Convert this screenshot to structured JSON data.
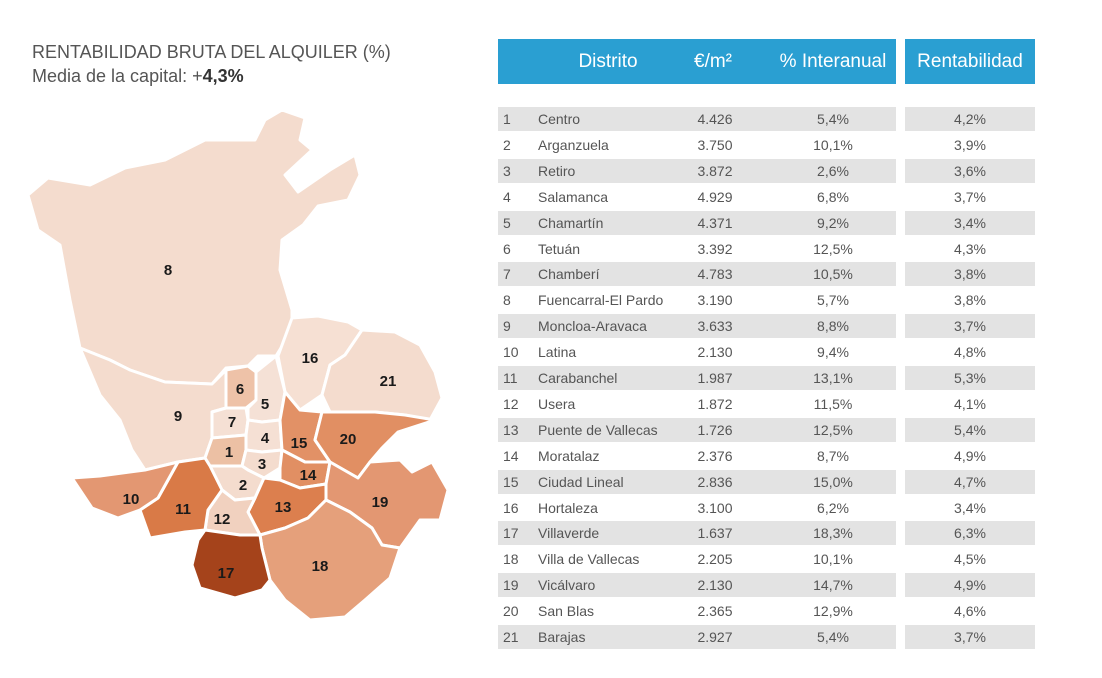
{
  "title": {
    "line1": "RENTABILIDAD BRUTA DEL ALQUILER (%)",
    "line2_prefix": "Media de la capital: +",
    "line2_value": "4,3%"
  },
  "table": {
    "headers": {
      "district": "Distrito",
      "price": "€/m²",
      "yoy": "% Interanual",
      "yield": "Rentabilidad"
    },
    "rows": [
      {
        "num": "1",
        "name": "Centro",
        "price": "4.426",
        "yoy": "5,4%",
        "yield": "4,2%"
      },
      {
        "num": "2",
        "name": "Arganzuela",
        "price": "3.750",
        "yoy": "10,1%",
        "yield": "3,9%"
      },
      {
        "num": "3",
        "name": "Retiro",
        "price": "3.872",
        "yoy": "2,6%",
        "yield": "3,6%"
      },
      {
        "num": "4",
        "name": "Salamanca",
        "price": "4.929",
        "yoy": "6,8%",
        "yield": "3,7%"
      },
      {
        "num": "5",
        "name": "Chamartín",
        "price": "4.371",
        "yoy": "9,2%",
        "yield": "3,4%"
      },
      {
        "num": "6",
        "name": "Tetuán",
        "price": "3.392",
        "yoy": "12,5%",
        "yield": "4,3%"
      },
      {
        "num": "7",
        "name": "Chamberí",
        "price": "4.783",
        "yoy": "10,5%",
        "yield": "3,8%"
      },
      {
        "num": "8",
        "name": "Fuencarral-El Pardo",
        "price": "3.190",
        "yoy": "5,7%",
        "yield": "3,8%"
      },
      {
        "num": "9",
        "name": "Moncloa-Aravaca",
        "price": "3.633",
        "yoy": "8,8%",
        "yield": "3,7%"
      },
      {
        "num": "10",
        "name": "Latina",
        "price": "2.130",
        "yoy": "9,4%",
        "yield": "4,8%"
      },
      {
        "num": "11",
        "name": "Carabanchel",
        "price": "1.987",
        "yoy": "13,1%",
        "yield": "5,3%"
      },
      {
        "num": "12",
        "name": "Usera",
        "price": "1.872",
        "yoy": "11,5%",
        "yield": "4,1%"
      },
      {
        "num": "13",
        "name": "Puente de Vallecas",
        "price": "1.726",
        "yoy": "12,5%",
        "yield": "5,4%"
      },
      {
        "num": "14",
        "name": "Moratalaz",
        "price": "2.376",
        "yoy": "8,7%",
        "yield": "4,9%"
      },
      {
        "num": "15",
        "name": "Ciudad Lineal",
        "price": "2.836",
        "yoy": "15,0%",
        "yield": "4,7%"
      },
      {
        "num": "16",
        "name": "Hortaleza",
        "price": "3.100",
        "yoy": "6,2%",
        "yield": "3,4%"
      },
      {
        "num": "17",
        "name": "Villaverde",
        "price": "1.637",
        "yoy": "18,3%",
        "yield": "6,3%"
      },
      {
        "num": "18",
        "name": "Villa de Vallecas",
        "price": "2.205",
        "yoy": "10,1%",
        "yield": "4,5%"
      },
      {
        "num": "19",
        "name": "Vicálvaro",
        "price": "2.130",
        "yoy": "14,7%",
        "yield": "4,9%"
      },
      {
        "num": "20",
        "name": "San Blas",
        "price": "2.365",
        "yoy": "12,9%",
        "yield": "4,6%"
      },
      {
        "num": "21",
        "name": "Barajas",
        "price": "2.927",
        "yoy": "5,4%",
        "yield": "3,7%"
      }
    ]
  },
  "map": {
    "labels": [
      "1",
      "2",
      "3",
      "4",
      "5",
      "6",
      "7",
      "8",
      "9",
      "10",
      "11",
      "12",
      "13",
      "14",
      "15",
      "16",
      "17",
      "18",
      "19",
      "20",
      "21"
    ],
    "colors": {
      "lightest": "#f4dcce",
      "light": "#efc7b0",
      "medium": "#e5a07b",
      "strong": "#dd8556",
      "darkest": "#a5431b",
      "border": "#ffffff",
      "header": "#2a9fd2"
    }
  }
}
